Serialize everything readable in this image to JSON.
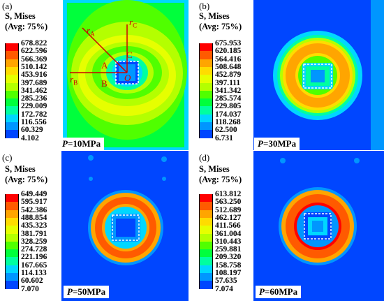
{
  "colors": {
    "bands": [
      "#ff0000",
      "#ff5a00",
      "#ffa500",
      "#ffdc00",
      "#e6ff00",
      "#b4ff00",
      "#50ff00",
      "#00ff3c",
      "#00ffa0",
      "#00d7ff",
      "#0096ff",
      "#0046ff",
      "#0000ff"
    ],
    "annot": "#cc0000"
  },
  "panels": [
    {
      "label": "(a)",
      "title_line1": "S, Mises",
      "title_line2": "(Avg: 75%)",
      "legend_values": [
        "678.822",
        "622.596",
        "566.369",
        "510.142",
        "453.916",
        "397.689",
        "341.462",
        "285.236",
        "229.009",
        "172.782",
        "116.556",
        "60.329",
        "4.102"
      ],
      "pressure_symbol": "P",
      "pressure_value": "=10MPa",
      "annotations": {
        "rA": "r",
        "rA_sub": "A",
        "rC": "r",
        "rC_sub": "C",
        "rB": "r",
        "rB_sub": "B",
        "A": "A",
        "B": "B",
        "C": "C",
        "O": "O"
      }
    },
    {
      "label": "(b)",
      "title_line1": "S, Mises",
      "title_line2": "(Avg: 75%)",
      "legend_values": [
        "675.953",
        "620.185",
        "564.416",
        "508.648",
        "452.879",
        "397.111",
        "341.342",
        "285.574",
        "229.805",
        "174.037",
        "118.268",
        "62.500",
        "6.731"
      ],
      "pressure_symbol": "P",
      "pressure_value": "=30MPa"
    },
    {
      "label": "(c)",
      "title_line1": "S, Mises",
      "title_line2": "(Avg: 75%)",
      "legend_values": [
        "649.449",
        "595.917",
        "542.386",
        "488.854",
        "435.323",
        "381.791",
        "328.259",
        "274.728",
        "221.196",
        "167.665",
        "114.133",
        "60.602",
        "7.070"
      ],
      "pressure_symbol": "P",
      "pressure_value": "=50MPa"
    },
    {
      "label": "(d)",
      "title_line1": "S, Mises",
      "title_line2": "(Avg: 75%)",
      "legend_values": [
        "613.812",
        "563.250",
        "512.689",
        "462.127",
        "411.566",
        "361.004",
        "310.443",
        "259.881",
        "209.320",
        "158.758",
        "108.197",
        "57.635",
        "7.074"
      ],
      "pressure_symbol": "P",
      "pressure_value": "=60MPa"
    }
  ]
}
